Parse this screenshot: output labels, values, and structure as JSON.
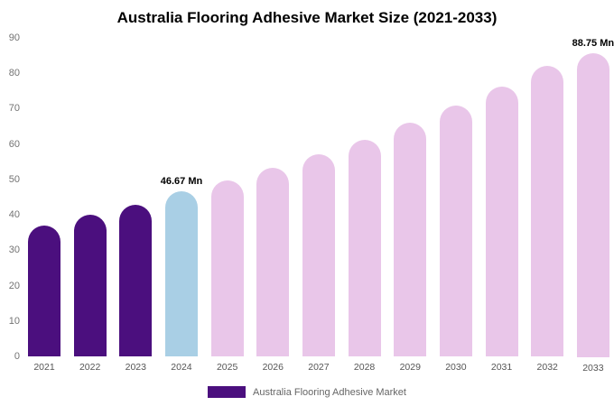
{
  "chart_data": {
    "type": "bar",
    "title": "Australia Flooring Adhesive Market Size (2021-2033)",
    "categories": [
      "2021",
      "2022",
      "2023",
      "2024",
      "2025",
      "2026",
      "2027",
      "2028",
      "2029",
      "2030",
      "2031",
      "2032",
      "2033"
    ],
    "values": [
      37,
      40,
      42.8,
      46.67,
      49.8,
      53.3,
      57.2,
      61.3,
      66,
      71,
      76.2,
      82,
      88.75
    ],
    "unit": "Mn",
    "xlabel": "",
    "ylabel": "",
    "ylim": [
      0,
      90
    ],
    "yticks": [
      0,
      10,
      20,
      30,
      40,
      50,
      60,
      70,
      80,
      90
    ],
    "grid": false,
    "bar_colors": [
      "#4b0f7e",
      "#4b0f7e",
      "#4b0f7e",
      "#a9cfe5",
      "#e9c6e9",
      "#e9c6e9",
      "#e9c6e9",
      "#e9c6e9",
      "#e9c6e9",
      "#e9c6e9",
      "#e9c6e9",
      "#e9c6e9",
      "#e9c6e9"
    ],
    "annotations": [
      {
        "category": "2024",
        "text": "46.67 Mn"
      },
      {
        "category": "2033",
        "text": "88.75 Mn"
      }
    ],
    "legend": {
      "label": "Australia Flooring Adhesive Market",
      "swatch_color": "#4b0f7e",
      "position": "bottom"
    }
  }
}
